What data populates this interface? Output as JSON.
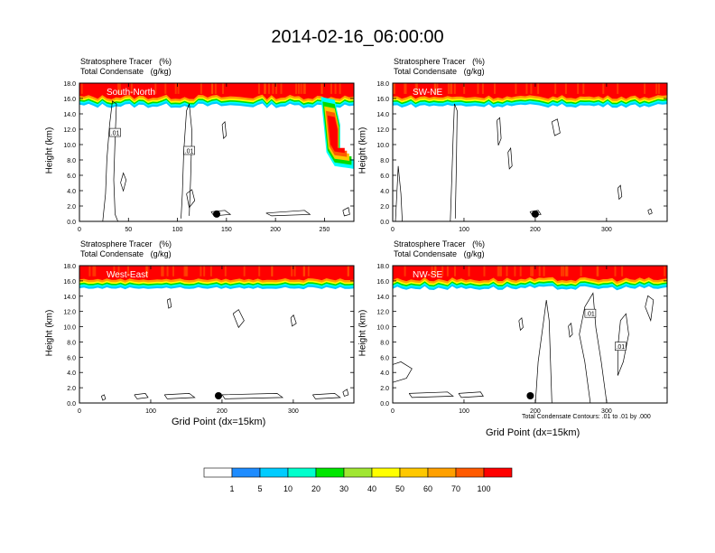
{
  "title": "2014-02-16_06:00:00",
  "panel_header": {
    "line1_label": "Stratosphere Tracer",
    "line1_units": "(%)",
    "line2_label": "Total Condensate",
    "line2_units": "(g/kg)"
  },
  "y_axis_title": "Height (km)",
  "x_axis_title": "Grid Point (dx=15km)",
  "contour_note": "Total Condensate Contours: .01 to .01 by .000",
  "contour_label": ".01",
  "colorbar": {
    "labels": [
      "1",
      "5",
      "10",
      "20",
      "30",
      "40",
      "50",
      "60",
      "70",
      "100"
    ],
    "colors": [
      "#ffffff",
      "#1e8cff",
      "#00c8ff",
      "#00ffff",
      "#00e68c",
      "#00dc00",
      "#a0e632",
      "#ffff00",
      "#ffc800",
      "#ffa000",
      "#ff5a00",
      "#ff0000"
    ]
  },
  "panels": [
    {
      "label": "South-North",
      "xlim": [
        0,
        280
      ],
      "xticks": [
        "0",
        "50",
        "100",
        "150",
        "200",
        "250"
      ],
      "yticks": [
        "0.0",
        "2.0",
        "4.0",
        "6.0",
        "8.0",
        "10.0",
        "12.0",
        "14.0",
        "16.0",
        "18.0"
      ],
      "marker_x": 140
    },
    {
      "label": "SW-NE",
      "xlim": [
        0,
        385
      ],
      "xticks": [
        "0",
        "100",
        "200",
        "300"
      ],
      "yticks": [
        "0.0",
        "2.0",
        "4.0",
        "6.0",
        "8.0",
        "10.0",
        "12.0",
        "14.0",
        "16.0",
        "18.0"
      ],
      "marker_x": 200
    },
    {
      "label": "West-East",
      "xlim": [
        0,
        385
      ],
      "xticks": [
        "0",
        "100",
        "200",
        "300"
      ],
      "yticks": [
        "0.0",
        "2.0",
        "4.0",
        "6.0",
        "8.0",
        "10.0",
        "12.0",
        "14.0",
        "16.0",
        "18.0"
      ],
      "marker_x": 195
    },
    {
      "label": "NW-SE",
      "xlim": [
        0,
        385
      ],
      "xticks": [
        "0",
        "100",
        "200",
        "300"
      ],
      "yticks": [
        "0.0",
        "2.0",
        "4.0",
        "6.0",
        "8.0",
        "10.0",
        "12.0",
        "14.0",
        "16.0",
        "18.0"
      ],
      "marker_x": 193
    }
  ]
}
